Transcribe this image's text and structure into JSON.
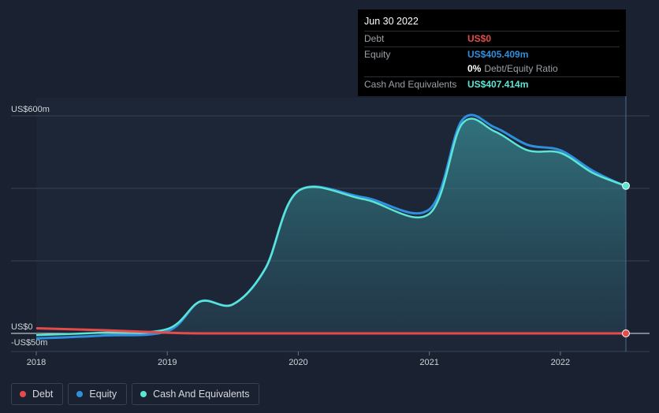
{
  "tooltip": {
    "date": "Jun 30 2022",
    "debt_label": "Debt",
    "debt_value": "US$0",
    "equity_label": "Equity",
    "equity_value": "US$405.409m",
    "ratio_value": "0%",
    "ratio_label": "Debt/Equity Ratio",
    "cash_label": "Cash And Equivalents",
    "cash_value": "US$407.414m"
  },
  "legend": {
    "debt": "Debt",
    "equity": "Equity",
    "cash": "Cash And Equivalents"
  },
  "colors": {
    "debt": "#e64b4b",
    "equity": "#2f8fdd",
    "cash": "#5ae5d4",
    "background": "#1a2130"
  },
  "chart_data": {
    "type": "area",
    "ylim": [
      -50,
      600
    ],
    "xlim": [
      2018.0,
      2022.5
    ],
    "y_tick_labels": [
      {
        "value": 600,
        "label": "US$600m"
      },
      {
        "value": 0,
        "label": "US$0"
      },
      {
        "value": -50,
        "label": "-US$50m"
      }
    ],
    "y_gridlines": [
      600,
      400,
      200,
      0,
      -50
    ],
    "x_ticks": [
      {
        "value": 2018.0,
        "label": "2018"
      },
      {
        "value": 2019.0,
        "label": "2019"
      },
      {
        "value": 2020.0,
        "label": "2020"
      },
      {
        "value": 2021.0,
        "label": "2021"
      },
      {
        "value": 2022.0,
        "label": "2022"
      }
    ],
    "cursor_x": 2022.5,
    "series": [
      {
        "name": "Debt",
        "key": "debt",
        "x": [
          2018.0,
          2018.5,
          2019.0,
          2019.25,
          2019.5,
          2020.0,
          2020.5,
          2021.0,
          2021.5,
          2022.0,
          2022.5
        ],
        "values": [
          14,
          9,
          2,
          0,
          0,
          0,
          0,
          0,
          0,
          0,
          0
        ]
      },
      {
        "name": "Equity",
        "key": "equity",
        "x": [
          2018.0,
          2018.5,
          2019.0,
          2019.25,
          2019.5,
          2019.75,
          2020.0,
          2020.5,
          2021.0,
          2021.25,
          2021.5,
          2021.75,
          2022.0,
          2022.25,
          2022.5
        ],
        "values": [
          -14,
          -6,
          6,
          88,
          80,
          180,
          393,
          375,
          342,
          588,
          568,
          520,
          505,
          448,
          405
        ]
      },
      {
        "name": "Cash And Equivalents",
        "key": "cash",
        "x": [
          2018.0,
          2018.5,
          2019.0,
          2019.25,
          2019.5,
          2019.75,
          2020.0,
          2020.5,
          2021.0,
          2021.25,
          2021.5,
          2021.75,
          2022.0,
          2022.25,
          2022.5
        ],
        "values": [
          -5,
          2,
          12,
          88,
          80,
          180,
          393,
          370,
          330,
          578,
          557,
          505,
          498,
          442,
          407
        ]
      }
    ]
  }
}
